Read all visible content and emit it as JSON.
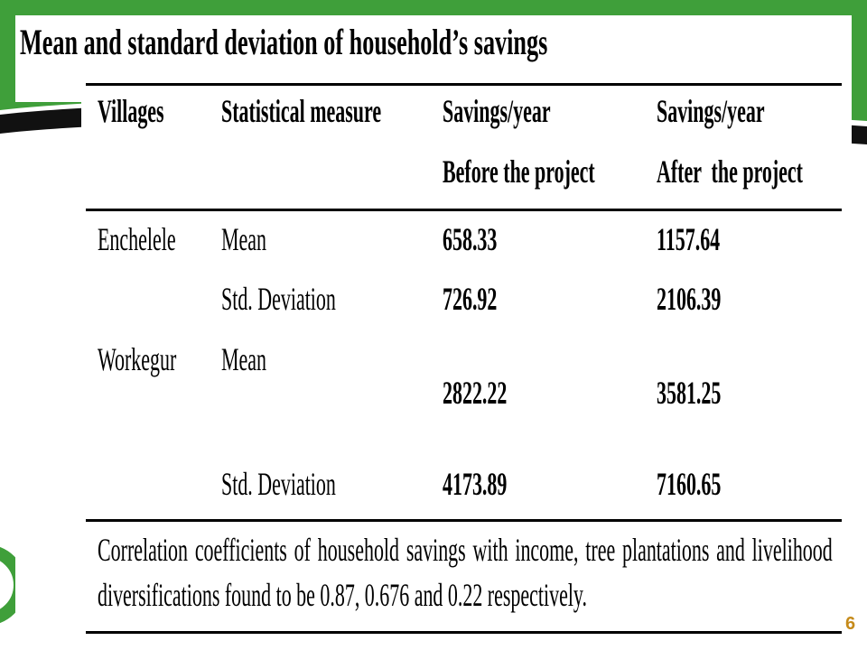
{
  "slide": {
    "title": "Mean and standard deviation of household’s savings",
    "page_number": "6"
  },
  "table": {
    "headers": [
      {
        "line1": "Villages"
      },
      {
        "line1": "Statistical measure"
      },
      {
        "line1": "Savings/year",
        "line2": "Before the project"
      },
      {
        "line1": "Savings/year",
        "line2": "After  the project"
      }
    ],
    "rows": [
      {
        "village": "Enchelele",
        "measure": "Mean",
        "before": "658.33",
        "after": "1157.64"
      },
      {
        "measure": "Std. Deviation",
        "before": "726.92",
        "after": "2106.39"
      },
      {
        "village": "Workegur",
        "measure": "Mean",
        "before": "2822.22",
        "after": "3581.25"
      },
      {
        "measure": "Std. Deviation",
        "before": "4173.89",
        "after": "7160.65"
      }
    ],
    "note_lines": [
      "Correlation coefficients of household savings with income, tree plantations and livelihood",
      "diversifications found to be 0.87, 0.676 and 0.22 respectively."
    ]
  },
  "icons": {
    "logo": "green-logo-ring"
  },
  "colors": {
    "header_green": "#3f9f3a",
    "swoosh": "#111111",
    "rule": "#000000",
    "page_number": "#c58a1a",
    "background": "#ffffff"
  }
}
